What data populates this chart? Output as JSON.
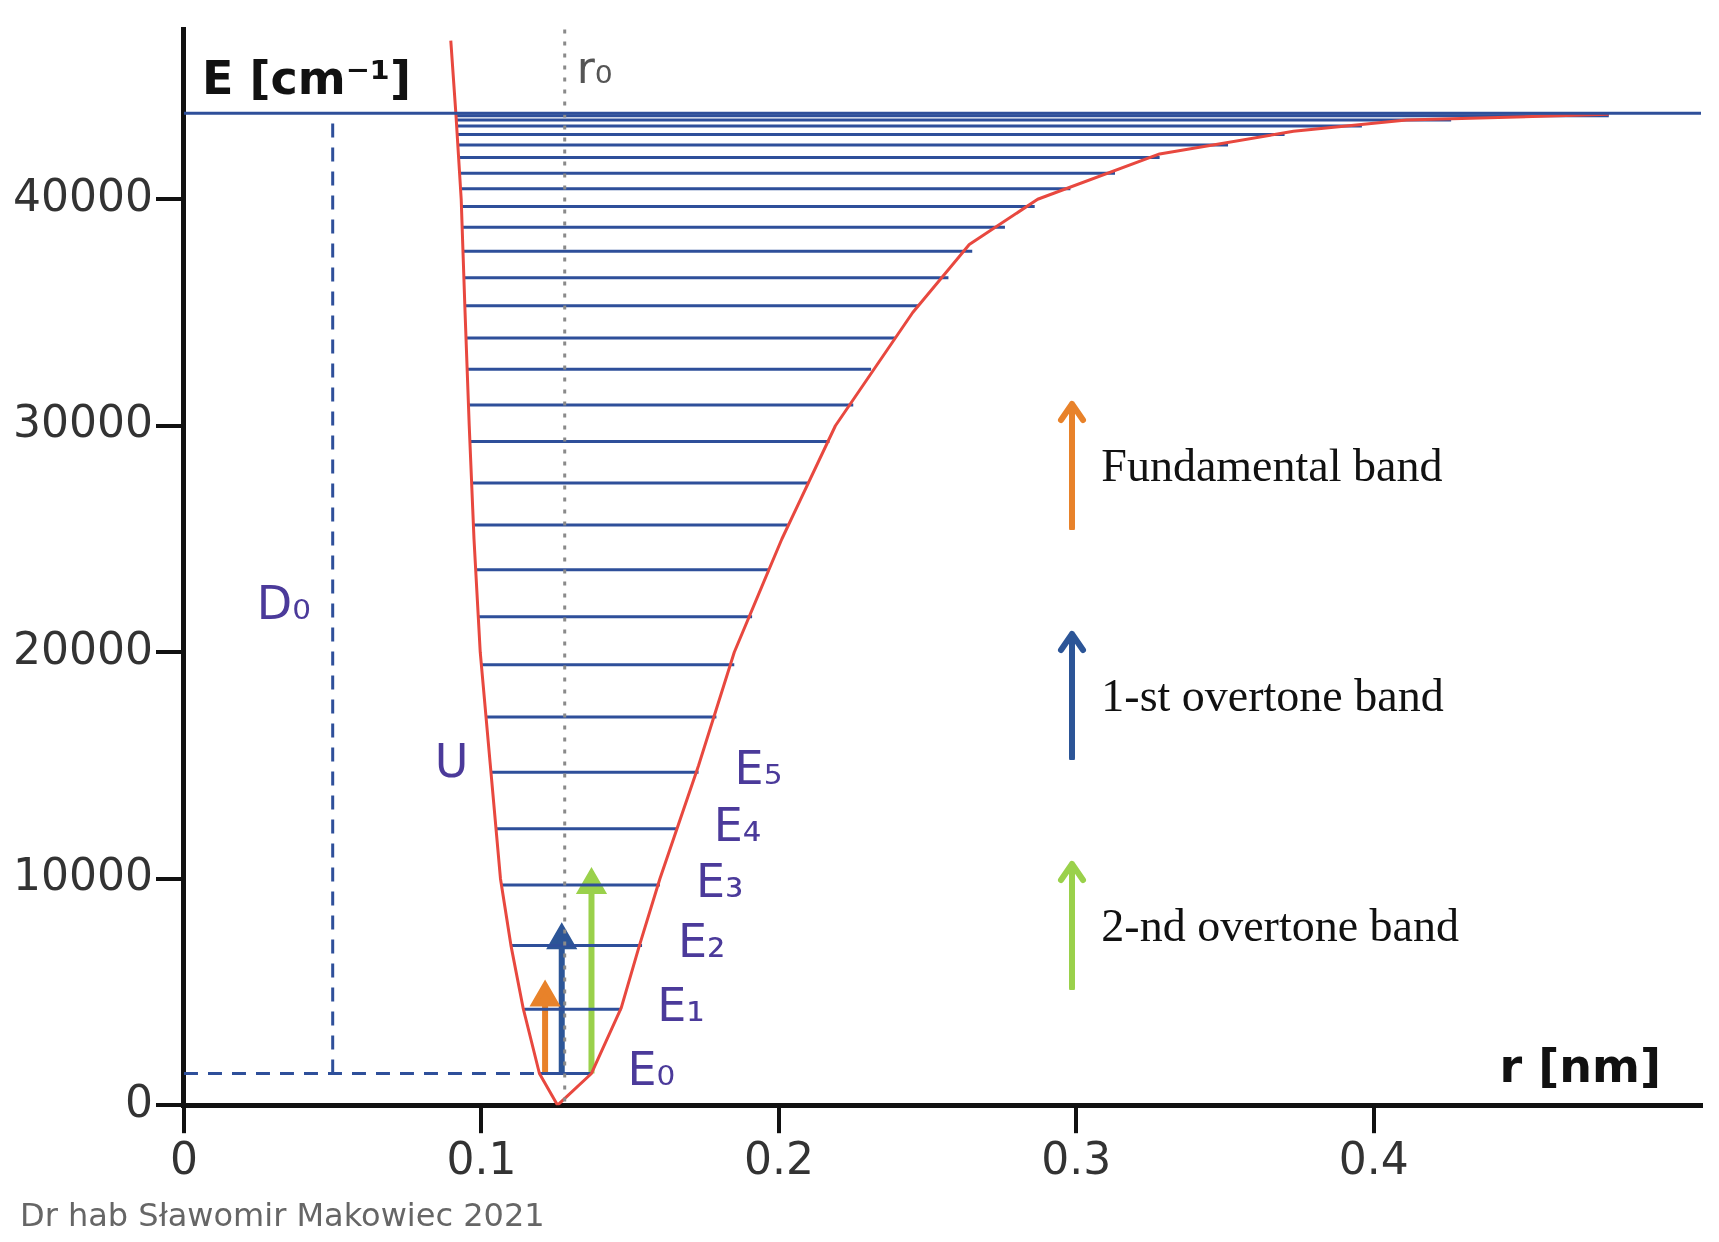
{
  "chart_data": {
    "type": "line",
    "xlabel": "r [nm]",
    "ylabel": "E [cm⁻¹]",
    "xlim": [
      0,
      0.51
    ],
    "ylim": [
      0,
      47500
    ],
    "xticks": [
      0,
      0.1,
      0.2,
      0.3,
      0.4
    ],
    "yticks": [
      0,
      10000,
      20000,
      30000,
      40000
    ],
    "legend": "right",
    "annotations": [
      {
        "text": "E₀",
        "x": 0.137,
        "y": 1400
      },
      {
        "text": "E₁",
        "x": 0.147,
        "y": 4240
      },
      {
        "text": "E₂",
        "x": 0.154,
        "y": 7050
      },
      {
        "text": "E₃",
        "x": 0.16,
        "y": 9720
      },
      {
        "text": "E₄",
        "x": 0.166,
        "y": 12210
      },
      {
        "text": "E₅",
        "x": 0.173,
        "y": 14700
      },
      {
        "text": "U",
        "x": 0.103,
        "y": 15000
      },
      {
        "text": "D₀",
        "x": 0.05,
        "y": 22000
      },
      "Dr hab Sławomir Makowiec 2021"
    ],
    "ref_lines": [
      {
        "axis": "x",
        "value": 0.128,
        "label": "r₀",
        "color": "#8a8a8a",
        "line_style": "dotted"
      },
      {
        "axis": "y",
        "value": 43800,
        "color": "#2e4f9a",
        "line_style": "solid"
      }
    ],
    "series": [
      {
        "color": "#e8483f",
        "x": [
          0.0897,
          0.0914,
          0.0932,
          0.0945,
          0.0959,
          0.0975,
          0.0996,
          0.103,
          0.1064,
          0.11,
          0.114,
          0.1195,
          0.1256,
          0.137,
          0.147,
          0.153,
          0.16,
          0.173,
          0.185,
          0.201,
          0.219,
          0.245,
          0.264,
          0.287,
          0.328,
          0.373,
          0.411,
          0.479
        ],
        "values": [
          47000,
          43800,
          40000,
          35000,
          30000,
          25000,
          20000,
          15000,
          10000,
          7000,
          4300,
          1400,
          0,
          1400,
          4300,
          7000,
          10000,
          15000,
          20000,
          25000,
          30000,
          35000,
          38000,
          40000,
          42000,
          43000,
          43500,
          43750
        ]
      },
      {
        "color": "#2e4f9a",
        "line_style": "dashed",
        "x": [
          0,
          0.1195
        ],
        "values": [
          1400,
          1400
        ]
      },
      {
        "color": "#2e4f9a",
        "line_style": "dashed",
        "x": [
          0.05,
          0.05
        ],
        "values": [
          1400,
          43800
        ]
      },
      {
        "color": "#2e4f9a",
        "x": [
          0.1195,
          0.137
        ],
        "values": [
          1400,
          1400
        ]
      },
      {
        "color": "#2e4f9a",
        "x": [
          0.114,
          0.147
        ],
        "values": [
          4240,
          4240
        ]
      },
      {
        "color": "#2e4f9a",
        "x": [
          0.11,
          0.154
        ],
        "values": [
          7050,
          7050
        ]
      },
      {
        "color": "#2e4f9a",
        "x": [
          0.1067,
          0.16
        ],
        "values": [
          9720,
          9720
        ]
      },
      {
        "color": "#2e4f9a",
        "x": [
          0.105,
          0.166
        ],
        "values": [
          12210,
          12210
        ]
      },
      {
        "color": "#2e4f9a",
        "x": [
          0.1032,
          0.173
        ],
        "values": [
          14700,
          14700
        ]
      },
      {
        "color": "#2e4f9a",
        "x": [
          0.1015,
          0.179
        ],
        "values": [
          17140,
          17140
        ]
      },
      {
        "color": "#2e4f9a",
        "x": [
          0.1,
          0.185
        ],
        "values": [
          19450,
          19450
        ]
      },
      {
        "color": "#2e4f9a",
        "x": [
          0.099,
          0.191
        ],
        "values": [
          21570,
          21570
        ]
      },
      {
        "color": "#2e4f9a",
        "x": [
          0.098,
          0.197
        ],
        "values": [
          23640,
          23640
        ]
      },
      {
        "color": "#2e4f9a",
        "x": [
          0.0973,
          0.203
        ],
        "values": [
          25620,
          25620
        ]
      },
      {
        "color": "#2e4f9a",
        "x": [
          0.0967,
          0.21
        ],
        "values": [
          27470,
          27470
        ]
      },
      {
        "color": "#2e4f9a",
        "x": [
          0.0961,
          0.217
        ],
        "values": [
          29310,
          29310
        ]
      },
      {
        "color": "#2e4f9a",
        "x": [
          0.0956,
          0.225
        ],
        "values": [
          30920,
          30920
        ]
      },
      {
        "color": "#2e4f9a",
        "x": [
          0.0952,
          0.231
        ],
        "values": [
          32490,
          32490
        ]
      },
      {
        "color": "#2e4f9a",
        "x": [
          0.0948,
          0.239
        ],
        "values": [
          33870,
          33870
        ]
      },
      {
        "color": "#2e4f9a",
        "x": [
          0.0944,
          0.247
        ],
        "values": [
          35300,
          35300
        ]
      },
      {
        "color": "#2e4f9a",
        "x": [
          0.0941,
          0.257
        ],
        "values": [
          36540,
          36540
        ]
      },
      {
        "color": "#2e4f9a",
        "x": [
          0.0938,
          0.265
        ],
        "values": [
          37700,
          37700
        ]
      },
      {
        "color": "#2e4f9a",
        "x": [
          0.0935,
          0.276
        ],
        "values": [
          38760,
          38760
        ]
      },
      {
        "color": "#2e4f9a",
        "x": [
          0.0933,
          0.286
        ],
        "values": [
          39680,
          39680
        ]
      },
      {
        "color": "#2e4f9a",
        "x": [
          0.093,
          0.298
        ],
        "values": [
          40460,
          40460
        ]
      },
      {
        "color": "#2e4f9a",
        "x": [
          0.0928,
          0.313
        ],
        "values": [
          41150,
          41150
        ]
      },
      {
        "color": "#2e4f9a",
        "x": [
          0.0926,
          0.328
        ],
        "values": [
          41840,
          41840
        ]
      },
      {
        "color": "#2e4f9a",
        "x": [
          0.0923,
          0.351
        ],
        "values": [
          42400,
          42400
        ]
      },
      {
        "color": "#2e4f9a",
        "x": [
          0.0921,
          0.37
        ],
        "values": [
          42860,
          42860
        ]
      },
      {
        "color": "#2e4f9a",
        "x": [
          0.0919,
          0.396
        ],
        "values": [
          43230,
          43230
        ]
      },
      {
        "color": "#2e4f9a",
        "x": [
          0.0917,
          0.426
        ],
        "values": [
          43500,
          43500
        ]
      },
      {
        "color": "#2e4f9a",
        "x": [
          0.0915,
          0.479
        ],
        "values": [
          43690,
          43690
        ]
      },
      {
        "name": "Fundamental band",
        "color": "#e8822a",
        "x": [
          0.1214,
          0.1214
        ],
        "values": [
          1400,
          4750
        ]
      },
      {
        "name": "1-st overtone band",
        "color": "#2c5597",
        "x": [
          0.127,
          0.127
        ],
        "values": [
          1400,
          7280
        ]
      },
      {
        "name": "2-nd overtone band",
        "color": "#9ad14b",
        "x": [
          0.137,
          0.137
        ],
        "values": [
          1400,
          9720
        ]
      }
    ]
  }
}
